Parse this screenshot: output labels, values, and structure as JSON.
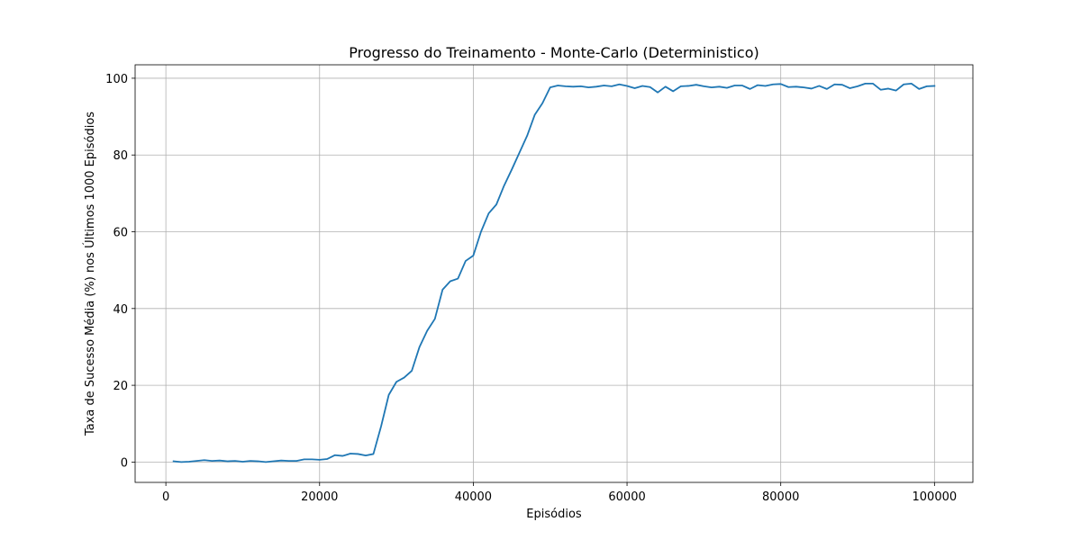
{
  "chart_data": {
    "type": "line",
    "title": "Progresso do Treinamento - Monte-Carlo (Deterministico)",
    "xlabel": "Episódios",
    "ylabel": "Taxa de Sucesso Média (%) nos Últimos 1000 Episódios",
    "xlim": [
      -4000,
      105000
    ],
    "ylim": [
      -5.3,
      103.5
    ],
    "xticks": [
      0,
      20000,
      40000,
      60000,
      80000,
      100000
    ],
    "xtick_labels": [
      "0",
      "20000",
      "40000",
      "60000",
      "80000",
      "100000"
    ],
    "yticks": [
      0,
      20,
      40,
      60,
      80,
      100
    ],
    "ytick_labels": [
      "0",
      "20",
      "40",
      "60",
      "80",
      "100"
    ],
    "grid": true,
    "series": [
      {
        "color": "#1f77b4",
        "x": [
          1000,
          2000,
          3000,
          4000,
          5000,
          6000,
          7000,
          8000,
          9000,
          10000,
          11000,
          12000,
          13000,
          14000,
          15000,
          16000,
          17000,
          18000,
          19000,
          20000,
          21000,
          22000,
          23000,
          24000,
          25000,
          26000,
          27000,
          28000,
          29000,
          30000,
          31000,
          32000,
          33000,
          34000,
          35000,
          36000,
          37000,
          38000,
          39000,
          40000,
          41000,
          42000,
          43000,
          44000,
          45000,
          46000,
          47000,
          48000,
          49000,
          50000,
          51000,
          52000,
          53000,
          54000,
          55000,
          56000,
          57000,
          58000,
          59000,
          60000,
          61000,
          62000,
          63000,
          64000,
          65000,
          66000,
          67000,
          68000,
          69000,
          70000,
          71000,
          72000,
          73000,
          74000,
          75000,
          76000,
          77000,
          78000,
          79000,
          80000,
          81000,
          82000,
          83000,
          84000,
          85000,
          86000,
          87000,
          88000,
          89000,
          90000,
          91000,
          92000,
          93000,
          94000,
          95000,
          96000,
          97000,
          98000,
          99000,
          100000
        ],
        "y": [
          0.2,
          0.0,
          0.1,
          0.3,
          0.5,
          0.3,
          0.4,
          0.2,
          0.3,
          0.1,
          0.3,
          0.2,
          0.0,
          0.2,
          0.4,
          0.3,
          0.3,
          0.7,
          0.7,
          0.6,
          0.8,
          1.8,
          1.6,
          2.2,
          2.1,
          1.7,
          2.1,
          9.3,
          17.5,
          20.9,
          22.0,
          23.8,
          30.0,
          34.2,
          37.3,
          44.9,
          47.1,
          47.8,
          52.4,
          53.8,
          60.0,
          64.8,
          67.1,
          72.0,
          76.2,
          80.6,
          85.0,
          90.5,
          93.5,
          97.6,
          98.1,
          97.9,
          97.8,
          97.9,
          97.6,
          97.8,
          98.1,
          97.9,
          98.4,
          98.0,
          97.4,
          98.0,
          97.7,
          96.3,
          97.8,
          96.6,
          97.9,
          98.0,
          98.3,
          97.9,
          97.6,
          97.8,
          97.5,
          98.1,
          98.1,
          97.2,
          98.2,
          98.0,
          98.4,
          98.5,
          97.7,
          97.8,
          97.6,
          97.3,
          98.0,
          97.2,
          98.4,
          98.3,
          97.4,
          97.9,
          98.6,
          98.6,
          97.0,
          97.3,
          96.8,
          98.4,
          98.6,
          97.2,
          97.9,
          98.0
        ]
      }
    ]
  }
}
